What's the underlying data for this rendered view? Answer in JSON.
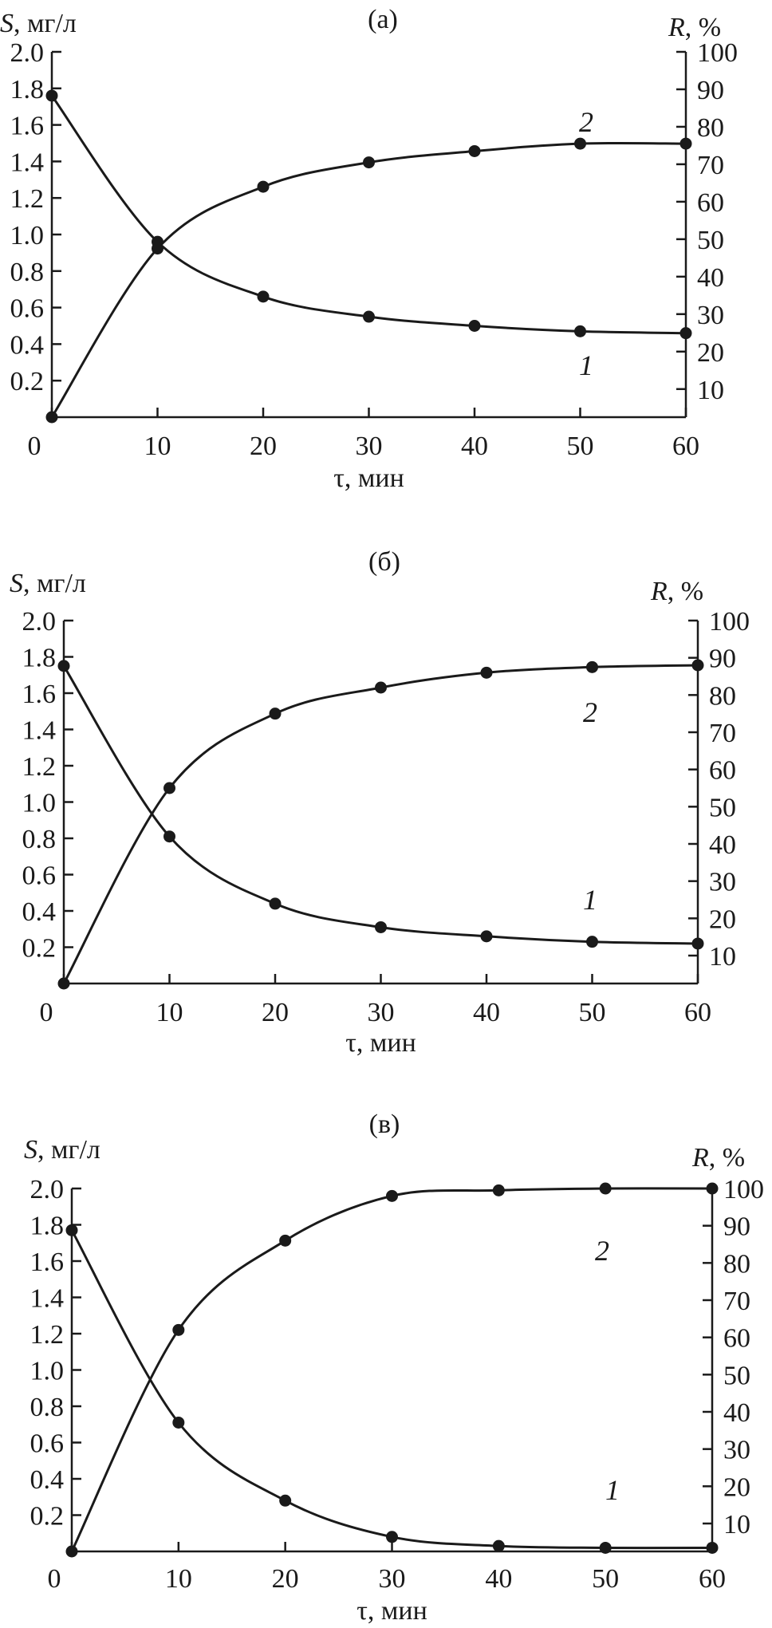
{
  "chart_data": [
    {
      "type": "line",
      "panel_label": "(а)",
      "xlabel": "τ, мин",
      "ylabel_left": {
        "symbol": "S",
        "unit": ", мг/л"
      },
      "ylabel_right": {
        "symbol": "R",
        "unit": ", %"
      },
      "xlim": [
        0,
        60
      ],
      "xticks": [
        "0",
        "10",
        "20",
        "30",
        "40",
        "50",
        "60"
      ],
      "ylim_left": [
        0,
        2.0
      ],
      "yticks_left": [
        "0.2",
        "0.4",
        "0.6",
        "0.8",
        "1.0",
        "1.2",
        "1.4",
        "1.6",
        "1.8",
        "2.0"
      ],
      "ylim_right": [
        2.5,
        100
      ],
      "yticks_right": [
        "10",
        "20",
        "30",
        "40",
        "50",
        "60",
        "70",
        "80",
        "90",
        "100"
      ],
      "series": [
        {
          "name": "1",
          "axis": "left",
          "x": [
            0,
            10,
            20,
            30,
            40,
            50,
            60
          ],
          "y": [
            1.76,
            0.96,
            0.66,
            0.55,
            0.5,
            0.47,
            0.46
          ]
        },
        {
          "name": "2",
          "axis": "right",
          "x": [
            0,
            10,
            20,
            30,
            40,
            50,
            60
          ],
          "y": [
            2.5,
            47.5,
            64,
            70.5,
            73.5,
            75.5,
            75.5
          ]
        }
      ]
    },
    {
      "type": "line",
      "panel_label": "(б)",
      "xlabel": "τ, мин",
      "ylabel_left": {
        "symbol": "S",
        "unit": ", мг/л"
      },
      "ylabel_right": {
        "symbol": "R",
        "unit": ", %"
      },
      "xlim": [
        0,
        60
      ],
      "xticks": [
        "0",
        "10",
        "20",
        "30",
        "40",
        "50",
        "60"
      ],
      "ylim_left": [
        0,
        2.0
      ],
      "yticks_left": [
        "0.2",
        "0.4",
        "0.6",
        "0.8",
        "1.0",
        "1.2",
        "1.4",
        "1.6",
        "1.8",
        "2.0"
      ],
      "ylim_right": [
        2.5,
        100
      ],
      "yticks_right": [
        "10",
        "20",
        "30",
        "40",
        "50",
        "60",
        "70",
        "80",
        "90",
        "100"
      ],
      "series": [
        {
          "name": "1",
          "axis": "left",
          "x": [
            0,
            10,
            20,
            30,
            40,
            50,
            60
          ],
          "y": [
            1.75,
            0.81,
            0.44,
            0.31,
            0.26,
            0.23,
            0.22
          ]
        },
        {
          "name": "2",
          "axis": "right",
          "x": [
            0,
            10,
            20,
            30,
            40,
            50,
            60
          ],
          "y": [
            2.5,
            55,
            75,
            82,
            86,
            87.5,
            88
          ]
        }
      ]
    },
    {
      "type": "line",
      "panel_label": "(в)",
      "xlabel": "τ, мин",
      "ylabel_left": {
        "symbol": "S",
        "unit": ", мг/л"
      },
      "ylabel_right": {
        "symbol": "R",
        "unit": ", %"
      },
      "xlim": [
        0,
        60
      ],
      "xticks": [
        "0",
        "10",
        "20",
        "30",
        "40",
        "50",
        "60"
      ],
      "ylim_left": [
        0,
        2.0
      ],
      "yticks_left": [
        "0.2",
        "0.4",
        "0.6",
        "0.8",
        "1.0",
        "1.2",
        "1.4",
        "1.6",
        "1.8",
        "2.0"
      ],
      "ylim_right": [
        2.5,
        100
      ],
      "yticks_right": [
        "10",
        "20",
        "30",
        "40",
        "50",
        "60",
        "70",
        "80",
        "90",
        "100"
      ],
      "series": [
        {
          "name": "1",
          "axis": "left",
          "x": [
            0,
            10,
            20,
            30,
            40,
            50,
            60
          ],
          "y": [
            1.77,
            0.71,
            0.28,
            0.08,
            0.03,
            0.02,
            0.02
          ]
        },
        {
          "name": "2",
          "axis": "right",
          "x": [
            0,
            10,
            20,
            30,
            40,
            50,
            60
          ],
          "y": [
            2.5,
            62,
            86,
            98,
            99.5,
            100,
            100
          ]
        }
      ]
    }
  ]
}
